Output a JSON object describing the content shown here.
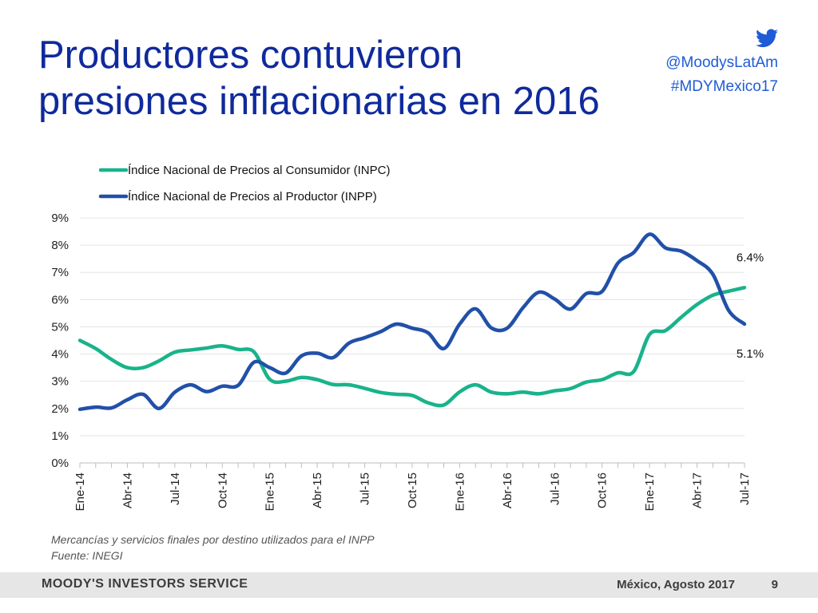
{
  "slide": {
    "title_lines": [
      "Productores contuvieron",
      "presiones inflacionarias en 2016"
    ],
    "twitter_handle": "@MoodysLatAm",
    "hashtag": "#MDYMexico17",
    "footnote_lines": [
      "Mercancías y servicios finales por destino utilizados para el INPP",
      "Fuente: INEGI"
    ],
    "footer_brand": "MOODY'S INVESTORS SERVICE",
    "footer_date": "México, Agosto 2017",
    "page_number": "9"
  },
  "colors": {
    "title": "#0f2a9c",
    "inpc": "#19b38a",
    "inpp": "#2150a8",
    "accent": "#1f5bd6"
  },
  "icons": {
    "twitter": "twitter-bird-icon"
  },
  "chart_data": {
    "type": "line",
    "title": "",
    "xlabel": "",
    "ylabel": "",
    "ylim": [
      0,
      9
    ],
    "yticks": [
      "0%",
      "1%",
      "2%",
      "3%",
      "4%",
      "5%",
      "6%",
      "7%",
      "8%",
      "9%"
    ],
    "categories": [
      "Ene-14",
      "Feb-14",
      "Mar-14",
      "Abr-14",
      "May-14",
      "Jun-14",
      "Jul-14",
      "Ago-14",
      "Sep-14",
      "Oct-14",
      "Nov-14",
      "Dic-14",
      "Ene-15",
      "Feb-15",
      "Mar-15",
      "Abr-15",
      "May-15",
      "Jun-15",
      "Jul-15",
      "Ago-15",
      "Sep-15",
      "Oct-15",
      "Nov-15",
      "Dic-15",
      "Ene-16",
      "Feb-16",
      "Mar-16",
      "Abr-16",
      "May-16",
      "Jun-16",
      "Jul-16",
      "Ago-16",
      "Sep-16",
      "Oct-16",
      "Nov-16",
      "Dic-16",
      "Ene-17",
      "Feb-17",
      "Mar-17",
      "Abr-17",
      "May-17",
      "Jun-17",
      "Jul-17"
    ],
    "tick_labels": [
      "Ene-14",
      "Abr-14",
      "Jul-14",
      "Oct-14",
      "Ene-15",
      "Abr-15",
      "Jul-15",
      "Oct-15",
      "Ene-16",
      "Abr-16",
      "Jul-16",
      "Oct-16",
      "Ene-17",
      "Abr-17",
      "Jul-17"
    ],
    "legend_position": "top",
    "grid": true,
    "series": [
      {
        "name": "Índice Nacional de Precios al Consumidor (INPC)",
        "color": "#19b38a",
        "values": [
          4.5,
          4.2,
          3.8,
          3.5,
          3.5,
          3.75,
          4.07,
          4.15,
          4.22,
          4.3,
          4.17,
          4.08,
          3.07,
          3.0,
          3.14,
          3.06,
          2.88,
          2.87,
          2.74,
          2.59,
          2.52,
          2.48,
          2.21,
          2.13,
          2.61,
          2.87,
          2.6,
          2.54,
          2.6,
          2.54,
          2.65,
          2.73,
          2.97,
          3.06,
          3.31,
          3.36,
          4.72,
          4.86,
          5.35,
          5.82,
          6.16,
          6.31,
          6.44
        ],
        "end_label": "6.4%"
      },
      {
        "name": "Índice Nacional de Precios al Productor (INPP)",
        "color": "#2150a8",
        "values": [
          1.97,
          2.05,
          2.02,
          2.32,
          2.52,
          2.0,
          2.6,
          2.87,
          2.62,
          2.82,
          2.85,
          3.7,
          3.5,
          3.3,
          3.93,
          4.03,
          3.87,
          4.4,
          4.6,
          4.82,
          5.1,
          4.95,
          4.78,
          4.2,
          5.1,
          5.66,
          4.96,
          4.95,
          5.7,
          6.27,
          6.02,
          5.65,
          6.22,
          6.3,
          7.34,
          7.73,
          8.4,
          7.9,
          7.78,
          7.43,
          6.93,
          5.6,
          5.1
        ],
        "end_label": "5.1%"
      }
    ]
  }
}
